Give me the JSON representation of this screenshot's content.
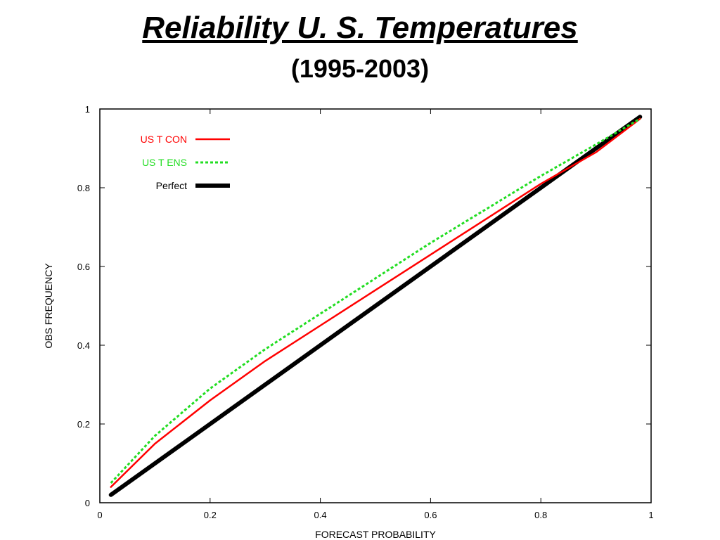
{
  "slide": {
    "title": "Reliability U. S. Temperatures",
    "subtitle": "(1995-2003)"
  },
  "chart_data": {
    "type": "line",
    "xlabel": "FORECAST PROBABILITY",
    "ylabel": "OBS FREQUENCY",
    "xlim": [
      0,
      1
    ],
    "ylim": [
      0,
      1
    ],
    "xticks": [
      "0",
      "0.2",
      "0.4",
      "0.6",
      "0.8",
      "1"
    ],
    "yticks": [
      "0",
      "0.2",
      "0.4",
      "0.6",
      "0.8",
      "1"
    ],
    "legend_position": "top-left",
    "grid": false,
    "series": [
      {
        "name": "US T CON",
        "color": "#ff0000",
        "style": "solid",
        "x": [
          0.02,
          0.1,
          0.2,
          0.3,
          0.4,
          0.5,
          0.6,
          0.7,
          0.8,
          0.9,
          0.98
        ],
        "y": [
          0.04,
          0.15,
          0.26,
          0.36,
          0.45,
          0.54,
          0.63,
          0.72,
          0.81,
          0.89,
          0.975
        ]
      },
      {
        "name": "US T ENS",
        "color": "#22dd22",
        "style": "dotted",
        "x": [
          0.02,
          0.1,
          0.2,
          0.3,
          0.4,
          0.5,
          0.6,
          0.7,
          0.8,
          0.9,
          0.98
        ],
        "y": [
          0.05,
          0.17,
          0.29,
          0.39,
          0.48,
          0.57,
          0.66,
          0.745,
          0.83,
          0.91,
          0.975
        ]
      },
      {
        "name": "Perfect",
        "color": "#000000",
        "style": "thick",
        "x": [
          0.02,
          0.98
        ],
        "y": [
          0.02,
          0.98
        ]
      }
    ]
  }
}
